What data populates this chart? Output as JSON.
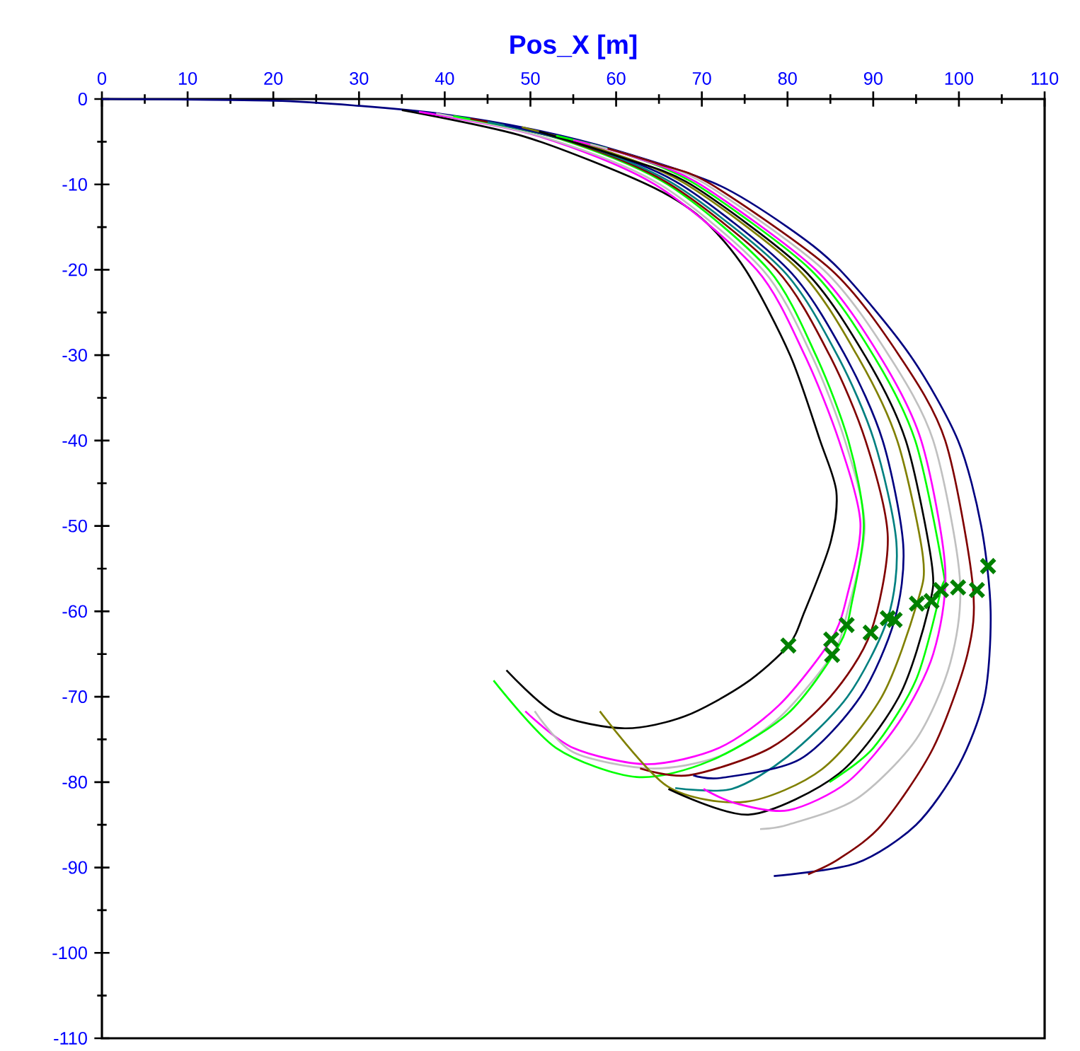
{
  "chart_data": {
    "type": "line",
    "xlabel": "Pos_X [m]",
    "xlim": [
      0,
      110
    ],
    "ylim": [
      -110,
      0
    ],
    "xticks": [
      0,
      10,
      20,
      30,
      40,
      50,
      60,
      70,
      80,
      90,
      100,
      110
    ],
    "yticks": [
      0,
      -10,
      -20,
      -30,
      -40,
      -50,
      -60,
      -70,
      -80,
      -90,
      -100,
      -110
    ],
    "line_style": "solid",
    "series": [
      {
        "color": "#000080",
        "x": [
          0,
          20,
          30,
          40,
          50,
          60,
          71.8,
          80,
          86.1,
          94.3,
          99.9,
          102.6,
          103.7,
          103,
          100,
          95,
          88,
          78.4
        ],
        "values": [
          0,
          -0.2,
          -0.8,
          -1.8,
          -3.5,
          -6,
          -10,
          -15,
          -20,
          -30,
          -40,
          -50,
          -60,
          -70,
          -78,
          -85,
          -89.5,
          -91
        ]
      },
      {
        "color": "#000000",
        "x": [
          35,
          49.3,
          63.6,
          70,
          75.1,
          80.3,
          83.8,
          85.7,
          85,
          82,
          80.1,
          75,
          68,
          61,
          53,
          47.2
        ],
        "values": [
          -1.3,
          -4.4,
          -10,
          -14,
          -20,
          -30,
          -40,
          -46,
          -52,
          -60,
          -64,
          -68.5,
          -72.3,
          -73.7,
          -72,
          -66.9
        ]
      },
      {
        "color": "#ff00ff",
        "x": [
          37,
          50.8,
          64.5,
          76.4,
          82,
          86,
          88.5,
          87,
          85.1,
          79,
          72,
          63.6,
          55,
          49.4
        ],
        "values": [
          -1.5,
          -4.3,
          -10,
          -20,
          -30,
          -40,
          -49.6,
          -58,
          -63.3,
          -71,
          -76,
          -77.9,
          -76,
          -71.7
        ]
      },
      {
        "color": "#c0c0c0",
        "x": [
          39,
          52,
          65.1,
          77.1,
          82.8,
          86.7,
          89,
          87,
          85.2,
          79,
          72,
          64,
          55,
          50.5
        ],
        "values": [
          -1.7,
          -4.6,
          -10,
          -20,
          -30,
          -40,
          -50,
          -60,
          -65.1,
          -72.5,
          -77,
          -78.4,
          -76.5,
          -71.7
        ]
      },
      {
        "color": "#00ff00",
        "x": [
          41,
          53.5,
          66,
          77.8,
          83.3,
          87.1,
          88.9,
          87.5,
          86,
          80,
          71,
          62.4,
          53,
          45.7
        ],
        "values": [
          -2,
          -4.7,
          -10,
          -20,
          -30,
          -40,
          -49.8,
          -59,
          -64,
          -72,
          -77.5,
          -79.4,
          -76,
          -68.1
        ]
      },
      {
        "color": "#800000",
        "x": [
          43,
          54.7,
          66.3,
          78.7,
          84.9,
          89.1,
          91.7,
          89.7,
          85,
          78,
          68.5,
          62.8
        ],
        "values": [
          -2.3,
          -5,
          -10,
          -20,
          -30,
          -40,
          -51.3,
          -62.5,
          -70,
          -76,
          -79.2,
          -78.4
        ]
      },
      {
        "color": "#008080",
        "x": [
          45,
          55.9,
          66.8,
          79.4,
          85.8,
          90.1,
          92.7,
          91.7,
          87,
          80,
          73.5,
          66.9
        ],
        "values": [
          -2.7,
          -5.3,
          -10,
          -20,
          -30,
          -40,
          -51.9,
          -60.8,
          -70,
          -77,
          -80.8,
          -80.7
        ]
      },
      {
        "color": "#000080",
        "x": [
          47,
          57,
          67.5,
          80.1,
          86.7,
          91.1,
          93.5,
          92.5,
          88.5,
          81.5,
          72.3,
          69
        ],
        "values": [
          -3,
          -5.6,
          -10,
          -20,
          -30,
          -40,
          -52.2,
          -61,
          -70,
          -77.3,
          -79.5,
          -79.2
        ]
      },
      {
        "color": "#808000",
        "x": [
          49,
          58.6,
          68.2,
          81.3,
          88.1,
          92.8,
          95.8,
          95.1,
          91,
          84,
          75.1,
          66,
          58.1
        ],
        "values": [
          -3.3,
          -6,
          -10,
          -20,
          -30,
          -40,
          -53.6,
          -59.1,
          -70,
          -78.5,
          -82.3,
          -80.5,
          -71.7
        ]
      },
      {
        "color": "#000000",
        "x": [
          51,
          60.5,
          68.7,
          81.9,
          89,
          93.8,
          96.8,
          96.5,
          93,
          86,
          75.6,
          66.1
        ],
        "values": [
          -3.8,
          -6.8,
          -10,
          -20,
          -30,
          -40,
          -54.2,
          -59.5,
          -70,
          -79,
          -83.8,
          -80.8
        ]
      },
      {
        "color": "#00ff00",
        "x": [
          53,
          61.2,
          69.3,
          82.7,
          90,
          94.9,
          98.1,
          97.9,
          95,
          90,
          84.9
        ],
        "values": [
          -4.3,
          -6.5,
          -10,
          -20,
          -30,
          -40,
          -54.9,
          -57.5,
          -68,
          -76,
          -80
        ]
      },
      {
        "color": "#ff00ff",
        "x": [
          55,
          62.4,
          69.8,
          83.3,
          90.7,
          95.6,
          98.4,
          97,
          93,
          87,
          80.1,
          74,
          70.2
        ],
        "values": [
          -4.8,
          -6.9,
          -10,
          -20,
          -30,
          -40,
          -55,
          -65,
          -73,
          -80,
          -83.3,
          -82.5,
          -80.8
        ]
      },
      {
        "color": "#c0c0c0",
        "x": [
          57,
          63.6,
          70.5,
          84.2,
          91.8,
          97,
          100.1,
          99,
          95,
          88,
          80,
          76.8
        ],
        "values": [
          -5.3,
          -7.2,
          -10,
          -20,
          -30,
          -40,
          -56,
          -66,
          -75,
          -82,
          -85,
          -85.5
        ]
      },
      {
        "color": "#800000",
        "x": [
          59,
          64.9,
          71.1,
          85.1,
          93,
          98.4,
          101.6,
          101,
          97,
          91,
          86,
          82.4
        ],
        "values": [
          -5.8,
          -7.6,
          -10,
          -20,
          -30,
          -40,
          -56.8,
          -65,
          -76,
          -85,
          -89,
          -90.8
        ]
      },
      {
        "type": "scatter",
        "marker": "cross",
        "color": "#008000",
        "x": [
          80.1,
          85.1,
          85.2,
          86.9,
          89.7,
          91.7,
          92.5,
          95.1,
          96.8,
          97.9,
          99.9,
          102.1,
          103.4
        ],
        "values": [
          -64,
          -63.3,
          -65.1,
          -61.6,
          -62.5,
          -60.8,
          -61,
          -59.1,
          -58.8,
          -57.5,
          -57.2,
          -57.5,
          -54.7
        ]
      }
    ]
  }
}
